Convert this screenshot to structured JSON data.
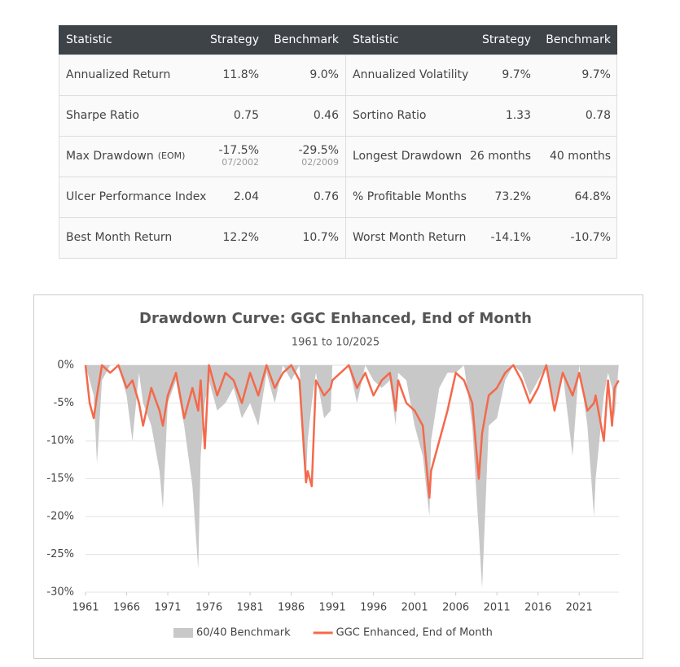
{
  "table": {
    "header": [
      "Statistic",
      "Strategy",
      "Benchmark",
      "Statistic",
      "Strategy",
      "Benchmark"
    ],
    "rows": [
      [
        "Annualized Return",
        "11.8%",
        "9.0%",
        "Annualized Volatility",
        "9.7%",
        "9.7%"
      ],
      [
        "Sharpe Ratio",
        "0.75",
        "0.46",
        "Sortino Ratio",
        "1.33",
        "0.78"
      ],
      [
        {
          "text": "Max Drawdown",
          "note": "(EOM)"
        },
        {
          "text": "-17.5%",
          "note": "07/2002"
        },
        {
          "text": "-29.5%",
          "note": "02/2009"
        },
        "Longest Drawdown",
        "26 months",
        "40 months"
      ],
      [
        "Ulcer Performance Index",
        "2.04",
        "0.76",
        "% Profitable Months",
        "73.2%",
        "64.8%"
      ],
      [
        "Best Month Return",
        "12.2%",
        "10.7%",
        "Worst Month Return",
        "-14.1%",
        "-10.7%"
      ]
    ]
  },
  "chart_data": {
    "type": "line",
    "title": "Drawdown Curve: GGC Enhanced, End of Month",
    "subtitle": "1961 to 10/2025",
    "x": [
      1961,
      1961.5,
      1962,
      1962.4,
      1963,
      1964,
      1965,
      1966,
      1966.7,
      1967.5,
      1968,
      1969,
      1970,
      1970.4,
      1971,
      1972,
      1973,
      1974,
      1974.7,
      1975,
      1975.5,
      1976,
      1977,
      1978,
      1979,
      1980,
      1981,
      1982,
      1983,
      1984,
      1985,
      1986,
      1987,
      1987.8,
      1988,
      1988.5,
      1989,
      1990,
      1990.8,
      1991,
      1992,
      1993,
      1994,
      1995,
      1996,
      1997,
      1998,
      1998.7,
      1999,
      2000,
      2001,
      2002,
      2002.8,
      2003,
      2004,
      2005,
      2006,
      2007,
      2008,
      2008.8,
      2009.2,
      2010,
      2011,
      2012,
      2013,
      2014,
      2015,
      2016,
      2017,
      2018,
      2019,
      2020.2,
      2021,
      2022,
      2022.8,
      2023,
      2024,
      2024.5,
      2025,
      2025.3,
      2025.8
    ],
    "series": [
      {
        "name": "60/40 Benchmark",
        "kind": "area",
        "color": "#c8c8c8",
        "values": [
          0,
          -2,
          -4,
          -13,
          -2,
          0,
          0,
          -4,
          -10,
          -1,
          -5,
          -8,
          -14,
          -19,
          -5,
          -2,
          -8,
          -16,
          -27,
          -12,
          -5,
          -2,
          -6,
          -5,
          -3,
          -7,
          -5,
          -8,
          -1,
          -5,
          0,
          -2,
          0,
          -15,
          -10,
          -5,
          -1,
          -7,
          -6,
          0,
          0,
          0,
          -5,
          0,
          -2,
          -3,
          -2,
          -8,
          -1,
          -2,
          -8,
          -12,
          -20,
          -10,
          -3,
          -1,
          -1,
          0,
          -8,
          -22,
          -29.5,
          -8,
          -7,
          -2,
          0,
          -1,
          -4,
          -2,
          0,
          -5,
          -1,
          -12,
          0,
          -8,
          -20,
          -15,
          -4,
          -1,
          -3,
          -7,
          0
        ]
      },
      {
        "name": "GGC Enhanced, End of Month",
        "kind": "line",
        "color": "#f4694b",
        "values": [
          0,
          -5,
          -7,
          -4,
          0,
          -1,
          0,
          -3,
          -2,
          -5,
          -8,
          -3,
          -6,
          -8,
          -4,
          -1,
          -7,
          -3,
          -6,
          -2,
          -11,
          0,
          -4,
          -1,
          -2,
          -5,
          -1,
          -4,
          0,
          -3,
          -1,
          0,
          -2,
          -15.5,
          -14,
          -16,
          -2,
          -4,
          -3,
          -2,
          -1,
          0,
          -3,
          -1,
          -4,
          -2,
          -1,
          -6,
          -2,
          -5,
          -6,
          -8,
          -17.5,
          -14,
          -10,
          -6,
          -1,
          -2,
          -5,
          -15,
          -9,
          -4,
          -3,
          -1,
          0,
          -2,
          -5,
          -3,
          0,
          -6,
          -1,
          -4,
          -1,
          -6,
          -5,
          -4,
          -10,
          -2,
          -8,
          -3,
          -2
        ]
      }
    ],
    "xlim": [
      1961,
      2025.83
    ],
    "ylim": [
      -30,
      0
    ],
    "xticks": [
      1961,
      1966,
      1971,
      1976,
      1981,
      1986,
      1991,
      1996,
      2001,
      2006,
      2011,
      2016,
      2021
    ],
    "yticks": [
      {
        "value": 0,
        "label": "0%"
      },
      {
        "value": -5,
        "label": "-5%"
      },
      {
        "value": -10,
        "label": "-10%"
      },
      {
        "value": -15,
        "label": "-15%"
      },
      {
        "value": -20,
        "label": "-20%"
      },
      {
        "value": -25,
        "label": "-25%"
      },
      {
        "value": -30,
        "label": "-30%"
      }
    ],
    "grid": true,
    "legend": "bottom"
  }
}
